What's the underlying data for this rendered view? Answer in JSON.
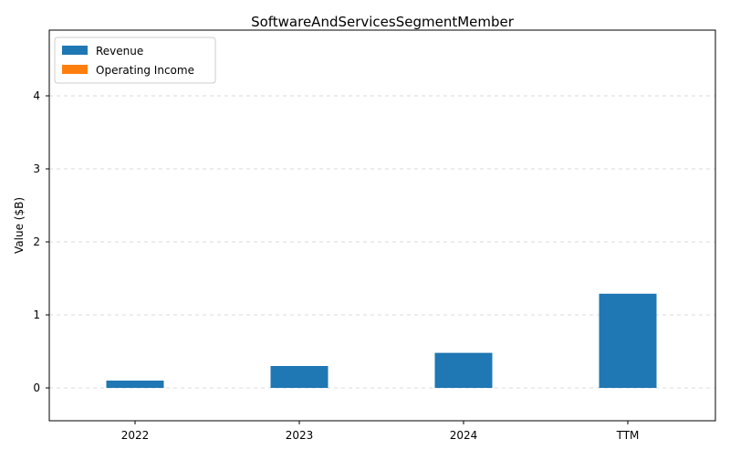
{
  "chart_data": {
    "type": "bar",
    "title": "SoftwareAndServicesSegmentMember",
    "xlabel": "",
    "ylabel": "Value ($B)",
    "categories": [
      "2022",
      "2023",
      "2024",
      "TTM"
    ],
    "series": [
      {
        "name": "Revenue",
        "color": "#1f77b4",
        "values": [
          0.1,
          0.3,
          0.48,
          1.29
        ]
      },
      {
        "name": "Operating Income",
        "color": "#ff7f0e",
        "values": [
          0,
          0,
          0,
          0
        ]
      }
    ],
    "ylim": [
      -0.45,
      4.9
    ],
    "yticks": [
      0,
      1,
      2,
      3,
      4
    ],
    "grid": true,
    "legend_position": "top-left"
  }
}
